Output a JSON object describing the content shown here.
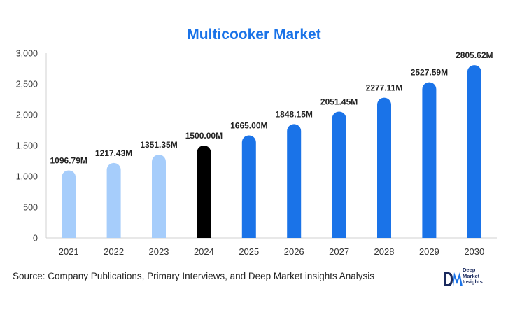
{
  "chart_data": {
    "type": "bar",
    "title": "Multicooker Market",
    "categories": [
      "2021",
      "2022",
      "2023",
      "2024",
      "2025",
      "2026",
      "2027",
      "2028",
      "2029",
      "2030"
    ],
    "values": [
      1096.79,
      1217.43,
      1351.35,
      1500.0,
      1665.0,
      1848.15,
      2051.45,
      2277.11,
      2527.59,
      2805.62
    ],
    "data_labels": [
      "1096.79M",
      "1217.43M",
      "1351.35M",
      "1500.00M",
      "1665.00M",
      "1848.15M",
      "2051.45M",
      "2277.11M",
      "2527.59M",
      "2805.62M"
    ],
    "bar_colors": [
      "#a6cdfb",
      "#a6cdfb",
      "#a6cdfb",
      "#000000",
      "#1a73e8",
      "#1a73e8",
      "#1a73e8",
      "#1a73e8",
      "#1a73e8",
      "#1a73e8"
    ],
    "ylim": [
      0,
      3000
    ],
    "yticks": [
      0,
      500,
      1000,
      1500,
      2000,
      2500,
      3000
    ],
    "ytick_labels": [
      "0",
      "500",
      "1,000",
      "1,500",
      "2,000",
      "2,500",
      "3,000"
    ],
    "grid": false,
    "xlabel": "",
    "ylabel": ""
  },
  "footer": {
    "source_label": "Source",
    "source_text": ": Company Publications, Primary Interviews, and Deep Market insights Analysis",
    "logo_mark": "DM",
    "logo_text": "Deep\nMarket\nInsights"
  },
  "colors": {
    "title": "#1a73e8",
    "historic": "#a6cdfb",
    "base_year": "#000000",
    "forecast": "#1a73e8"
  }
}
